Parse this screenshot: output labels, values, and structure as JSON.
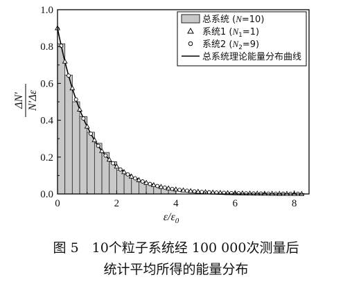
{
  "chart_data": {
    "type": "bar",
    "title": "",
    "xlabel_main": "ε/ε",
    "xlabel_sub": "0",
    "ylabel_num": "ΔN′",
    "ylabel_den": "N′Δε",
    "xlim": [
      0,
      8.5
    ],
    "ylim": [
      0,
      1.0
    ],
    "xticks": [
      "0",
      "2",
      "4",
      "6",
      "8"
    ],
    "xtick_values": [
      0,
      2,
      4,
      6,
      8
    ],
    "yticks": [
      "0.0",
      "0.2",
      "0.4",
      "0.6",
      "0.8",
      "1.0"
    ],
    "ytick_values": [
      0.0,
      0.2,
      0.4,
      0.6,
      0.8,
      1.0
    ],
    "bin_width": 0.25,
    "bars": [
      0.815,
      0.645,
      0.5,
      0.42,
      0.335,
      0.275,
      0.225,
      0.175,
      0.13,
      0.105,
      0.085,
      0.065,
      0.055,
      0.04,
      0.032,
      0.025
    ],
    "curve": {
      "name": "总系统理论能量分布曲线",
      "a": 0.9,
      "b": 0.9
    },
    "legend": {
      "position": "top-right",
      "entries": [
        {
          "prefix": "总系统 (",
          "var": "N",
          "sub": "",
          "suffix": "=10)"
        },
        {
          "prefix": "系统1 (",
          "var": "N",
          "sub": "1",
          "suffix": "=1)"
        },
        {
          "prefix": "系统2 (",
          "var": "N",
          "sub": "2",
          "suffix": "=9)"
        },
        {
          "prefix": "总系统理论能量分布曲线",
          "var": "",
          "sub": "",
          "suffix": ""
        }
      ]
    },
    "colors": {
      "bar_fill": "#c8c8c8",
      "bar_edge": "#222222",
      "curve": "#000000"
    }
  },
  "caption": {
    "line1": "图 5　10个粒子系统经 100 000次测量后",
    "line2": "统计平均所得的能量分布"
  }
}
